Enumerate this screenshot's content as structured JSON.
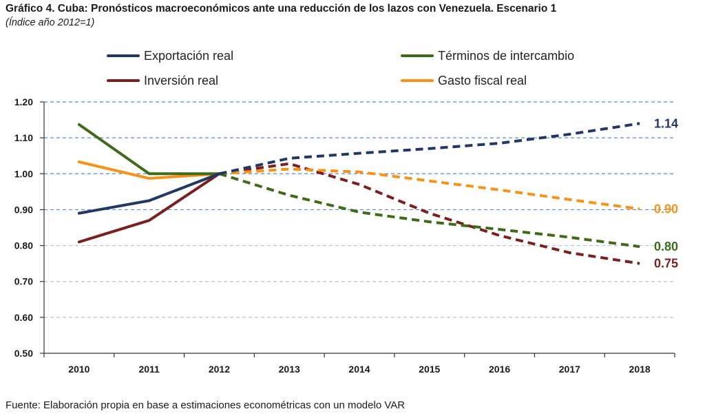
{
  "title": "Gráfico 4. Cuba: Pronósticos macroeconómicos ante una reducción de los lazos con Venezuela. Escenario 1",
  "subtitle": "(Índice año 2012=1)",
  "source": "Fuente: Elaboración propia en base a estimaciones econométricas con un modelo VAR",
  "chart_data": {
    "type": "line",
    "title": "Gráfico 4. Cuba: Pronósticos macroeconómicos ante una reducción de los lazos con Venezuela. Escenario 1",
    "subtitle": "(Índice año 2012=1)",
    "xlabel": "",
    "ylabel": "",
    "categories": [
      "2010",
      "2011",
      "2012",
      "2013",
      "2014",
      "2015",
      "2016",
      "2017",
      "2018"
    ],
    "ylim": [
      0.5,
      1.2
    ],
    "yticks": [
      "0.50",
      "0.60",
      "0.70",
      "0.80",
      "0.90",
      "1.00",
      "1.10",
      "1.20"
    ],
    "grid": "horizontal dashed",
    "legend": "top",
    "forecast_from": "2012",
    "series": [
      {
        "name": "Exportación real",
        "color": "#1f3864",
        "values": [
          0.89,
          0.925,
          1.0,
          1.043,
          1.057,
          1.07,
          1.085,
          1.11,
          1.14
        ],
        "end_label": "1.14"
      },
      {
        "name": "Términos de intercambio",
        "color": "#3e6b17",
        "values": [
          1.137,
          1.0,
          1.0,
          0.94,
          0.893,
          0.866,
          0.845,
          0.823,
          0.797
        ],
        "end_label": "0.80"
      },
      {
        "name": "Inversión real",
        "color": "#7a1f1f",
        "values": [
          0.81,
          0.87,
          1.0,
          1.028,
          0.97,
          0.89,
          0.828,
          0.78,
          0.75
        ],
        "end_label": "0.75"
      },
      {
        "name": "Gasto fiscal real",
        "color": "#f79218",
        "values": [
          1.033,
          0.987,
          1.0,
          1.013,
          1.005,
          0.98,
          0.955,
          0.928,
          0.902
        ],
        "end_label": "0.90"
      }
    ]
  }
}
